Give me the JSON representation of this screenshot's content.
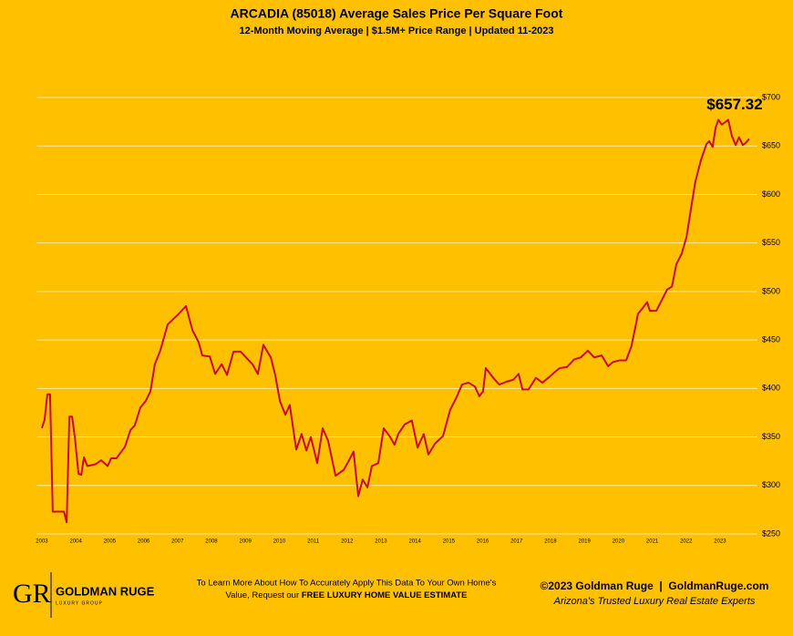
{
  "chart_data": {
    "type": "line",
    "title": "ARCADIA (85018) Average Sales Price Per Square Foot",
    "subtitle": "12-Month Moving Average | $1.5M+ Price Range | Updated 11-2023",
    "x": [
      2003.0,
      2003.08,
      2003.16,
      2003.24,
      2003.32,
      2003.65,
      2003.73,
      2003.81,
      2003.89,
      2003.97,
      2004.08,
      2004.16,
      2004.24,
      2004.34,
      2004.59,
      2004.75,
      2004.94,
      2005.04,
      2005.2,
      2005.45,
      2005.61,
      2005.74,
      2005.9,
      2006.06,
      2006.2,
      2006.33,
      2006.49,
      2006.71,
      2007.01,
      2007.25,
      2007.44,
      2007.62,
      2007.73,
      2007.95,
      2008.11,
      2008.3,
      2008.46,
      2008.65,
      2008.86,
      2009.02,
      2009.21,
      2009.37,
      2009.53,
      2009.75,
      2009.88,
      2010.02,
      2010.18,
      2010.31,
      2010.5,
      2010.66,
      2010.8,
      2010.93,
      2011.12,
      2011.28,
      2011.44,
      2011.52,
      2011.66,
      2011.9,
      2012.06,
      2012.19,
      2012.33,
      2012.46,
      2012.6,
      2012.73,
      2012.92,
      2013.08,
      2013.27,
      2013.4,
      2013.51,
      2013.7,
      2013.91,
      2014.08,
      2014.26,
      2014.4,
      2014.59,
      2014.83,
      2015.04,
      2015.23,
      2015.39,
      2015.58,
      2015.77,
      2015.9,
      2016.01,
      2016.09,
      2016.31,
      2016.49,
      2016.71,
      2016.9,
      2017.06,
      2017.17,
      2017.35,
      2017.57,
      2017.76,
      2017.97,
      2018.13,
      2018.27,
      2018.48,
      2018.7,
      2018.89,
      2019.1,
      2019.29,
      2019.51,
      2019.7,
      2019.83,
      2020.04,
      2020.23,
      2020.39,
      2020.58,
      2020.72,
      2020.85,
      2020.93,
      2021.12,
      2021.28,
      2021.44,
      2021.58,
      2021.71,
      2021.87,
      2022.01,
      2022.14,
      2022.27,
      2022.44,
      2022.6,
      2022.68,
      2022.78,
      2022.87,
      2022.95,
      2023.05,
      2023.13,
      2023.24,
      2023.35,
      2023.46,
      2023.56,
      2023.67,
      2023.75,
      2023.86
    ],
    "series": [
      {
        "color": "#cc0a1e",
        "values": [
          359,
          368,
          394,
          394,
          273,
          273,
          262,
          371,
          371,
          350,
          312,
          311,
          329,
          320,
          322,
          326,
          320,
          328,
          328,
          340,
          357,
          362,
          380,
          387,
          397,
          425,
          439,
          466,
          476,
          485,
          460,
          448,
          434,
          433,
          415,
          425,
          414,
          438,
          438,
          432,
          425,
          415,
          445,
          432,
          414,
          387,
          373,
          383,
          337,
          353,
          336,
          350,
          323,
          359,
          346,
          333,
          310,
          316,
          326,
          335,
          289,
          306,
          298,
          320,
          323,
          359,
          350,
          342,
          353,
          363,
          367,
          339,
          353,
          332,
          343,
          351,
          378,
          391,
          404,
          406,
          402,
          392,
          397,
          421,
          411,
          404,
          407,
          409,
          415,
          399,
          399,
          411,
          406,
          412,
          417,
          421,
          422,
          430,
          432,
          439,
          432,
          434,
          423,
          427,
          429,
          429,
          444,
          477,
          483,
          489,
          480,
          480,
          491,
          502,
          505,
          528,
          539,
          556,
          585,
          613,
          636,
          652,
          655,
          649,
          669,
          677,
          672,
          674,
          677,
          660,
          651,
          659,
          651,
          653,
          657.32
        ],
        "value_labels": [
          null,
          null,
          null,
          null,
          null,
          null,
          null,
          null,
          null,
          null,
          null,
          null,
          null,
          null,
          null,
          null,
          null,
          null,
          null,
          null,
          null,
          null,
          null,
          null,
          null,
          null,
          null,
          null,
          null,
          null,
          null,
          null,
          null,
          null,
          null,
          null,
          null,
          null,
          null,
          null,
          null,
          null,
          null,
          null,
          null,
          null,
          null,
          null,
          null,
          null,
          null,
          null,
          null,
          null,
          null,
          null,
          null,
          null,
          null,
          null,
          null,
          null,
          null,
          null,
          null,
          null,
          null,
          null,
          null,
          null,
          null,
          null,
          null,
          null,
          null,
          null,
          null,
          null,
          null,
          null,
          null,
          null,
          null,
          null,
          null,
          null,
          null,
          null,
          null,
          null,
          null,
          null,
          null,
          null,
          null,
          null,
          null,
          null,
          null,
          null,
          null,
          null,
          null,
          null,
          null,
          null,
          null,
          null,
          null,
          null,
          null,
          null,
          null,
          null,
          null,
          null,
          null,
          null,
          null,
          null,
          null,
          null,
          null,
          null,
          null,
          null,
          null,
          null,
          null,
          null,
          null,
          null,
          null,
          null,
          "$657.32"
        ]
      }
    ],
    "xlim": [
      2002.85,
      2024.1
    ],
    "xticks": [
      2003,
      2004,
      2005,
      2006,
      2007,
      2008,
      2009,
      2010,
      2011,
      2012,
      2013,
      2014,
      2015,
      2016,
      2017,
      2018,
      2019,
      2020,
      2021,
      2022,
      2023
    ],
    "ylim": [
      250,
      700
    ],
    "yticks": [
      {
        "value": 250,
        "label": "$250"
      },
      {
        "value": 300,
        "label": "$300"
      },
      {
        "value": 350,
        "label": "$350"
      },
      {
        "value": 400,
        "label": "$400"
      },
      {
        "value": 450,
        "label": "$450"
      },
      {
        "value": 500,
        "label": "$500"
      },
      {
        "value": 550,
        "label": "$550"
      },
      {
        "value": 600,
        "label": "$600"
      },
      {
        "value": 650,
        "label": "$650"
      },
      {
        "value": 700,
        "label": "$700"
      }
    ],
    "grid": true
  },
  "footer": {
    "logo_mark": "GR",
    "logo_name": "GOLDMAN RUGE",
    "logo_sub": "LUXURY GROUP",
    "cta_line1": "To Learn More About How To Accurately Apply This Data To Your Own Home's",
    "cta_line2": "Value, Request our ",
    "cta_bold": "FREE LUXURY HOME VALUE ESTIMATE",
    "copyright": "©2023 Goldman Ruge  |  GoldmanRuge.com",
    "tagline": "Arizona's Trusted Luxury Real Estate Experts"
  }
}
